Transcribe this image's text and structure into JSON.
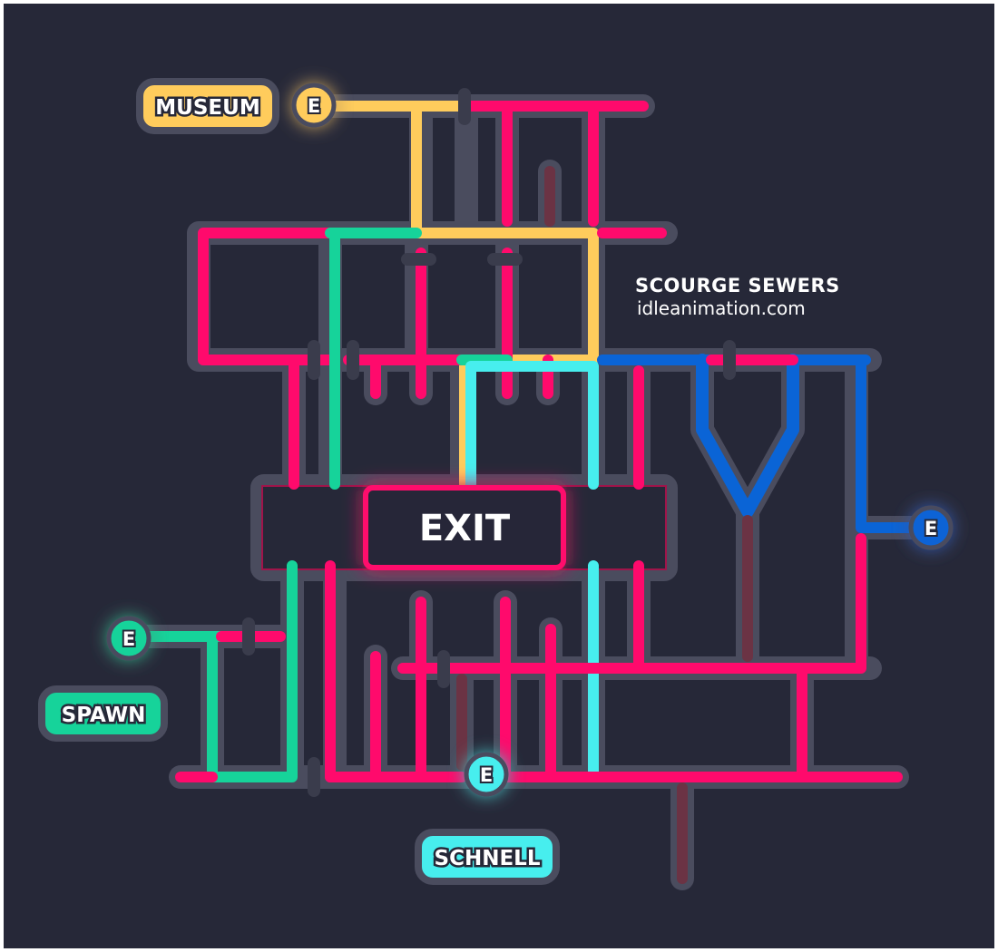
{
  "map": {
    "title": "SCOURGE SEWERS",
    "site": "idleanimation.com",
    "exit_label": "EXIT",
    "entrance_label": "E",
    "locations": [
      {
        "id": "museum",
        "label": "MUSEUM",
        "color": "#ffcc5c"
      },
      {
        "id": "spawn",
        "label": "SPAWN",
        "color": "#16d39a"
      },
      {
        "id": "schnell",
        "label": "SCHNELL",
        "color": "#47eeee"
      }
    ],
    "entrances": [
      {
        "id": "museum",
        "color": "#ffcc5c"
      },
      {
        "id": "spawn",
        "color": "#16d39a"
      },
      {
        "id": "schnell",
        "color": "#47eeee"
      },
      {
        "id": "east",
        "color": "#0a64d6"
      }
    ],
    "route_colors": {
      "pink": "#ff0a6c",
      "green": "#16d39a",
      "yellow": "#ffcc5c",
      "cyan": "#47eeee",
      "blue": "#0a64d6",
      "dead_end": "#6b3344"
    },
    "background": "#262838"
  }
}
